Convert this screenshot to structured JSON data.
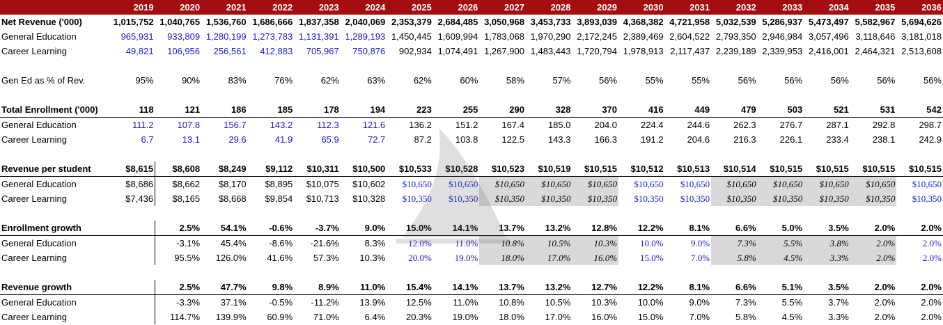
{
  "header": {
    "years": [
      "2019",
      "2020",
      "2021",
      "2022",
      "2023",
      "2024",
      "2025",
      "2026",
      "2027",
      "2028",
      "2029",
      "2030",
      "2031",
      "2032",
      "2033",
      "2034",
      "2035",
      "2036"
    ]
  },
  "rows": [
    {
      "id": "net-revenue",
      "label": "Net Revenue ('000)",
      "bold": true,
      "underline": false,
      "values": [
        "1,015,752",
        "1,040,765",
        "1,536,760",
        "1,686,666",
        "1,837,358",
        "2,040,069",
        "2,353,379",
        "2,684,485",
        "3,050,968",
        "3,453,733",
        "3,893,039",
        "4,368,382",
        "4,721,958",
        "5,032,539",
        "5,286,937",
        "5,473,497",
        "5,582,967",
        "5,694,626"
      ]
    },
    {
      "id": "rev-gen-ed",
      "label": "General Education",
      "blue_upto": 6,
      "values": [
        "965,931",
        "933,809",
        "1,280,199",
        "1,273,783",
        "1,131,391",
        "1,289,193",
        "1,450,445",
        "1,609,994",
        "1,783,068",
        "1,970,290",
        "2,172,245",
        "2,389,469",
        "2,604,522",
        "2,793,350",
        "2,946,984",
        "3,057,496",
        "3,118,646",
        "3,181,018"
      ]
    },
    {
      "id": "rev-career",
      "label": "Career Learning",
      "blue_upto": 6,
      "values": [
        "49,821",
        "106,956",
        "256,561",
        "412,883",
        "705,967",
        "750,876",
        "902,934",
        "1,074,491",
        "1,267,900",
        "1,483,443",
        "1,720,794",
        "1,978,913",
        "2,117,437",
        "2,239,189",
        "2,339,953",
        "2,416,001",
        "2,464,321",
        "2,513,608"
      ]
    },
    {
      "id": "spacer1",
      "spacer": true
    },
    {
      "id": "gen-ed-pct",
      "label": "Gen Ed as % of Rev.",
      "values": [
        "95%",
        "90%",
        "83%",
        "76%",
        "62%",
        "63%",
        "62%",
        "60%",
        "58%",
        "57%",
        "56%",
        "55%",
        "55%",
        "56%",
        "56%",
        "56%",
        "56%",
        "56%"
      ]
    },
    {
      "id": "spacer2",
      "spacer": true
    },
    {
      "id": "total-enrollment",
      "label": "Total Enrollment ('000)",
      "bold": true,
      "underline": true,
      "values": [
        "118",
        "121",
        "186",
        "185",
        "178",
        "194",
        "223",
        "255",
        "290",
        "328",
        "370",
        "416",
        "449",
        "479",
        "503",
        "521",
        "531",
        "542"
      ]
    },
    {
      "id": "enr-gen-ed",
      "label": "General Education",
      "blue_upto": 6,
      "values": [
        "111.2",
        "107.8",
        "156.7",
        "143.2",
        "112.3",
        "121.6",
        "136.2",
        "151.2",
        "167.4",
        "185.0",
        "204.0",
        "224.4",
        "244.6",
        "262.3",
        "276.7",
        "287.1",
        "292.8",
        "298.7"
      ]
    },
    {
      "id": "enr-career",
      "label": "Career Learning",
      "blue_upto": 6,
      "values": [
        "6.7",
        "13.1",
        "29.6",
        "41.9",
        "65.9",
        "72.7",
        "87.2",
        "103.8",
        "122.5",
        "143.3",
        "166.3",
        "191.2",
        "204.6",
        "216.3",
        "226.1",
        "233.4",
        "238.1",
        "242.9"
      ]
    },
    {
      "id": "spacer3",
      "spacer": true
    },
    {
      "id": "rev-per-student",
      "label": "Revenue per student",
      "bold": true,
      "underline": true,
      "vline": true,
      "values": [
        "$8,615",
        "$8,608",
        "$8,249",
        "$9,112",
        "$10,311",
        "$10,500",
        "$10,533",
        "$10,528",
        "$10,523",
        "$10,519",
        "$10,515",
        "$10,512",
        "$10,513",
        "$10,514",
        "$10,515",
        "$10,515",
        "$10,515",
        "$10,515"
      ]
    },
    {
      "id": "rps-gen-ed",
      "label": "General Education",
      "assumption": true,
      "vline": true,
      "values": [
        "$8,686",
        "$8,662",
        "$8,170",
        "$8,895",
        "$10,075",
        "$10,602",
        "$10,650",
        "$10,650",
        "$10,650",
        "$10,650",
        "$10,650",
        "$10,650",
        "$10,650",
        "$10,650",
        "$10,650",
        "$10,650",
        "$10,650",
        "$10,650"
      ]
    },
    {
      "id": "rps-career",
      "label": "Career Learning",
      "assumption": true,
      "vline": true,
      "values": [
        "$7,436",
        "$8,165",
        "$8,668",
        "$9,854",
        "$10,713",
        "$10,328",
        "$10,350",
        "$10,350",
        "$10,350",
        "$10,350",
        "$10,350",
        "$10,350",
        "$10,350",
        "$10,350",
        "$10,350",
        "$10,350",
        "$10,350",
        "$10,350"
      ]
    },
    {
      "id": "spacer4",
      "spacer": true
    },
    {
      "id": "enrollment-growth",
      "label": "Enrollment growth",
      "bold": true,
      "underline": true,
      "vline": true,
      "values": [
        "",
        "2.5%",
        "54.1%",
        "-0.6%",
        "-3.7%",
        "9.0%",
        "15.0%",
        "14.1%",
        "13.7%",
        "13.2%",
        "12.8%",
        "12.2%",
        "8.1%",
        "6.6%",
        "5.0%",
        "3.5%",
        "2.0%",
        "2.0%"
      ]
    },
    {
      "id": "eg-gen-ed",
      "label": "General Education",
      "assumption": true,
      "vline": true,
      "values": [
        "",
        "-3.1%",
        "45.4%",
        "-8.6%",
        "-21.6%",
        "8.3%",
        "12.0%",
        "11.0%",
        "10.8%",
        "10.5%",
        "10.3%",
        "10.0%",
        "9.0%",
        "7.3%",
        "5.5%",
        "3.8%",
        "2.0%",
        "2.0%"
      ]
    },
    {
      "id": "eg-career",
      "label": "Career Learning",
      "assumption": true,
      "vline": true,
      "values": [
        "",
        "95.5%",
        "126.0%",
        "41.6%",
        "57.3%",
        "10.3%",
        "20.0%",
        "19.0%",
        "18.0%",
        "17.0%",
        "16.0%",
        "15.0%",
        "7.0%",
        "5.8%",
        "4.5%",
        "3.3%",
        "2.0%",
        "2.0%"
      ]
    },
    {
      "id": "spacer5",
      "spacer": true
    },
    {
      "id": "revenue-growth",
      "label": "Revenue growth",
      "bold": true,
      "underline": true,
      "vline": true,
      "values": [
        "",
        "2.5%",
        "47.7%",
        "9.8%",
        "8.9%",
        "11.0%",
        "15.4%",
        "14.1%",
        "13.7%",
        "13.2%",
        "12.7%",
        "12.2%",
        "8.1%",
        "6.6%",
        "5.1%",
        "3.5%",
        "2.0%",
        "2.0%"
      ]
    },
    {
      "id": "rg-gen-ed",
      "label": "General Education",
      "vline": true,
      "values": [
        "",
        "-3.3%",
        "37.1%",
        "-0.5%",
        "-11.2%",
        "13.9%",
        "12.5%",
        "11.0%",
        "10.8%",
        "10.5%",
        "10.3%",
        "10.0%",
        "9.0%",
        "7.3%",
        "5.5%",
        "3.7%",
        "2.0%",
        "2.0%"
      ]
    },
    {
      "id": "rg-career",
      "label": "Career Learning",
      "vline": true,
      "values": [
        "",
        "114.7%",
        "139.9%",
        "60.9%",
        "71.0%",
        "6.4%",
        "20.3%",
        "19.0%",
        "18.0%",
        "17.0%",
        "16.0%",
        "15.0%",
        "7.0%",
        "5.8%",
        "4.5%",
        "3.3%",
        "2.0%",
        "2.0%"
      ]
    }
  ],
  "styles": {
    "header_bg": "#a40d10",
    "input_blue": "#1a1ad6",
    "shade": "#d9d9d9",
    "shaded_year_groups": [
      [
        "2027",
        "2028",
        "2029"
      ],
      [
        "2032",
        "2033",
        "2034",
        "2035"
      ]
    ]
  },
  "watermark_icon": "shark-fin-icon"
}
